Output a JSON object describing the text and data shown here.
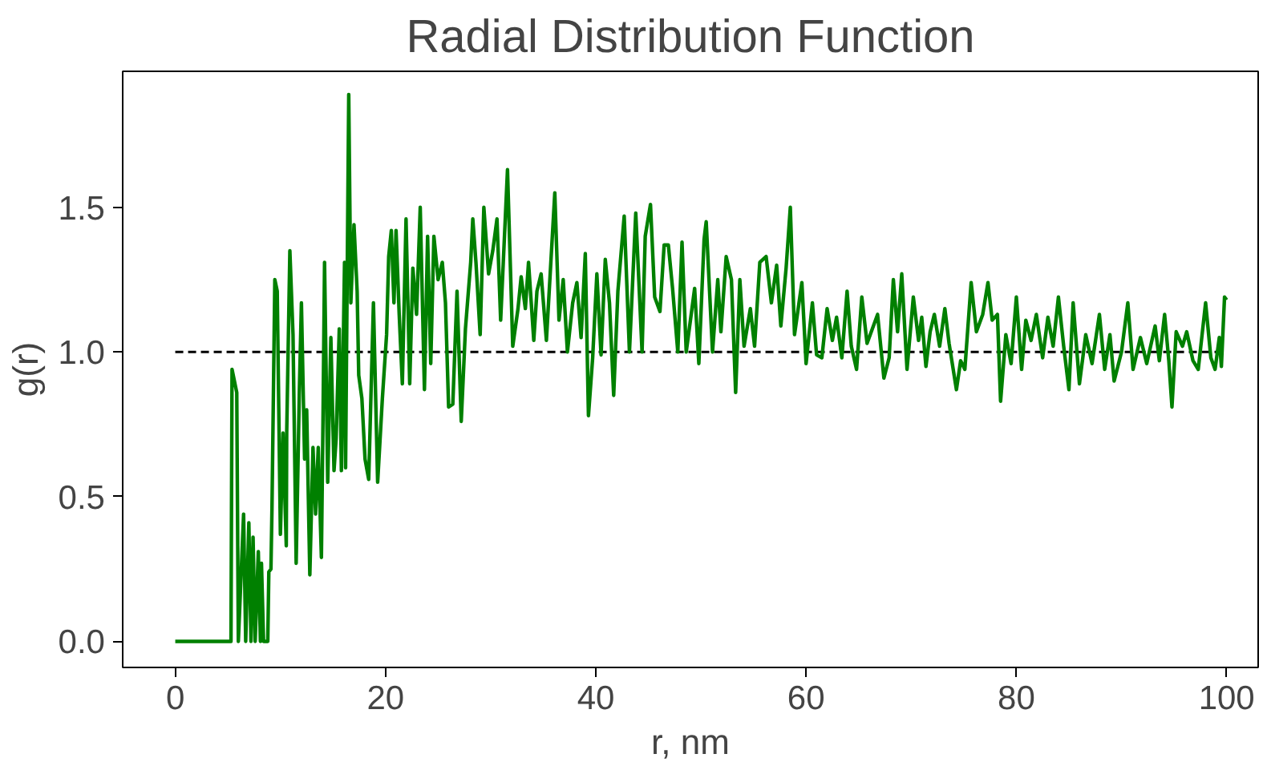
{
  "chart_data": {
    "type": "line",
    "title": "Radial Distribution Function",
    "xlabel": "r, nm",
    "ylabel": "g(r)",
    "xlim": [
      -5,
      103
    ],
    "ylim": [
      -0.09,
      1.97
    ],
    "xticks": [
      0,
      20,
      40,
      60,
      80,
      100
    ],
    "yticks": [
      {
        "value": 0,
        "label": "0.0"
      },
      0.5,
      {
        "value": 1,
        "label": "1.0"
      },
      1.5
    ],
    "grid": false,
    "marker": "none",
    "line_style": "solid",
    "ref_lines": [
      {
        "axis": "y",
        "value": 1,
        "label": null,
        "color": "#000000",
        "line_style": "dashed"
      }
    ],
    "series": [
      {
        "color": "#008000",
        "x": [
          0,
          5.3,
          5.4,
          5.85,
          6.0,
          6.5,
          6.7,
          7.0,
          7.2,
          7.4,
          7.6,
          7.9,
          8.1,
          8.2,
          8.4,
          8.8,
          8.9,
          9.1,
          9.2,
          9.47,
          9.7,
          10.0,
          10.25,
          10.56,
          10.6,
          10.9,
          11.2,
          11.5,
          11.8,
          12.0,
          12.3,
          12.5,
          12.8,
          13.1,
          13.35,
          13.6,
          13.9,
          14.05,
          14.2,
          14.5,
          14.8,
          15.1,
          15.3,
          15.6,
          15.8,
          16.1,
          16.2,
          16.5,
          16.7,
          17.0,
          17.3,
          17.45,
          17.75,
          18.05,
          18.4,
          18.85,
          19.25,
          19.7,
          20.1,
          20.3,
          20.55,
          20.8,
          21.0,
          21.3,
          21.6,
          21.95,
          22.3,
          22.6,
          22.95,
          23.3,
          23.7,
          24.0,
          24.3,
          24.6,
          25.0,
          25.4,
          25.7,
          26.0,
          26.4,
          26.8,
          27.2,
          27.6,
          28.1,
          28.3,
          28.6,
          29.0,
          29.35,
          29.8,
          30.2,
          30.6,
          30.95,
          31.6,
          32.1,
          32.6,
          32.9,
          33.3,
          33.6,
          34.1,
          34.4,
          34.8,
          35.3,
          36.1,
          36.5,
          36.9,
          37.3,
          37.8,
          38.2,
          38.6,
          39.0,
          39.3,
          39.7,
          40.1,
          40.5,
          40.9,
          41.3,
          41.7,
          42.1,
          42.7,
          43.2,
          43.8,
          44.4,
          44.7,
          45.2,
          45.6,
          46.1,
          46.5,
          46.9,
          47.3,
          47.8,
          48.2,
          48.6,
          49.0,
          49.4,
          49.8,
          50.3,
          50.5,
          51.1,
          51.6,
          51.9,
          52.4,
          52.9,
          53.3,
          53.7,
          54.1,
          54.7,
          55.1,
          55.6,
          56.2,
          56.7,
          57.2,
          57.6,
          58.1,
          58.5,
          58.9,
          59.6,
          60.0,
          60.6,
          61.0,
          61.5,
          62.0,
          62.5,
          62.9,
          63.4,
          63.9,
          64.3,
          64.8,
          65.3,
          65.8,
          66.8,
          67.4,
          67.9,
          68.3,
          68.7,
          69.1,
          69.6,
          70.2,
          70.7,
          71.0,
          71.4,
          71.8,
          72.2,
          72.7,
          73.2,
          73.6,
          74.3,
          74.7,
          75.1,
          75.7,
          76.2,
          76.8,
          77.3,
          77.7,
          78.2,
          78.5,
          79.0,
          79.5,
          80.0,
          80.5,
          80.9,
          81.4,
          81.9,
          82.5,
          83.0,
          83.5,
          84.0,
          84.5,
          85.0,
          85.4,
          86.0,
          86.6,
          87.2,
          87.9,
          88.4,
          88.9,
          89.3,
          90.0,
          90.6,
          91.1,
          91.8,
          92.4,
          93.2,
          93.6,
          94.1,
          94.5,
          94.8,
          95.2,
          95.8,
          96.2,
          96.8,
          97.3,
          98.0,
          98.5,
          98.9,
          99.3,
          99.5,
          99.8,
          100.0
        ],
        "values": [
          0,
          0,
          0.94,
          0.86,
          0,
          0.44,
          0,
          0.41,
          0,
          0.36,
          0,
          0.31,
          0,
          0.27,
          0,
          0,
          0.24,
          0.25,
          0.46,
          1.25,
          1.21,
          0.37,
          0.72,
          0.33,
          0.72,
          1.35,
          1.06,
          0.27,
          0.86,
          1.17,
          0.63,
          0.8,
          0.23,
          0.67,
          0.44,
          0.67,
          0.29,
          0.76,
          1.31,
          0.55,
          1.05,
          0.59,
          0.7,
          1.08,
          0.59,
          1.31,
          0.6,
          1.89,
          1.17,
          1.44,
          1.21,
          0.92,
          0.84,
          0.63,
          0.56,
          1.17,
          0.55,
          0.84,
          1.06,
          1.33,
          1.42,
          1.17,
          1.42,
          1.13,
          0.89,
          1.46,
          0.89,
          1.29,
          1.13,
          1.5,
          0.87,
          1.4,
          0.96,
          1.4,
          1.25,
          1.31,
          1.17,
          0.81,
          0.82,
          1.21,
          0.76,
          1.08,
          1.31,
          1.46,
          1.31,
          1.06,
          1.5,
          1.27,
          1.35,
          1.46,
          1.11,
          1.63,
          1.02,
          1.15,
          1.26,
          1.15,
          1.31,
          1.04,
          1.21,
          1.27,
          1.04,
          1.55,
          1.11,
          1.25,
          1.0,
          1.17,
          1.24,
          1.05,
          1.34,
          0.78,
          0.98,
          1.27,
          0.99,
          1.32,
          1.17,
          0.85,
          1.21,
          1.47,
          1.0,
          1.48,
          1.0,
          1.4,
          1.51,
          1.19,
          1.14,
          1.37,
          1.37,
          1.22,
          1.0,
          1.38,
          1.0,
          1.11,
          1.22,
          0.96,
          1.39,
          1.45,
          1.0,
          1.25,
          1.07,
          1.33,
          1.25,
          0.86,
          1.25,
          1.02,
          1.15,
          1.02,
          1.31,
          1.33,
          1.17,
          1.3,
          1.09,
          1.29,
          1.5,
          1.06,
          1.24,
          0.96,
          1.17,
          0.99,
          0.98,
          1.15,
          1.04,
          1.12,
          0.98,
          1.21,
          1.02,
          0.94,
          1.19,
          1.03,
          1.13,
          0.91,
          0.98,
          1.25,
          1.07,
          1.27,
          0.94,
          1.19,
          1.04,
          1.12,
          0.95,
          1.07,
          1.13,
          1.02,
          1.15,
          1.03,
          0.87,
          0.97,
          0.94,
          1.24,
          1.07,
          1.13,
          1.24,
          1.11,
          1.13,
          0.83,
          1.06,
          0.96,
          1.19,
          0.94,
          1.11,
          1.04,
          1.13,
          0.98,
          1.12,
          1.02,
          1.19,
          1.02,
          0.87,
          1.17,
          0.89,
          1.06,
          0.96,
          1.13,
          0.94,
          1.06,
          0.9,
          1.0,
          1.17,
          0.94,
          1.05,
          0.96,
          1.09,
          0.97,
          1.13,
          0.97,
          0.81,
          1.07,
          1.02,
          1.07,
          0.97,
          0.94,
          1.17,
          0.98,
          0.94,
          1.05,
          0.95,
          1.19,
          1.18
        ]
      }
    ]
  }
}
